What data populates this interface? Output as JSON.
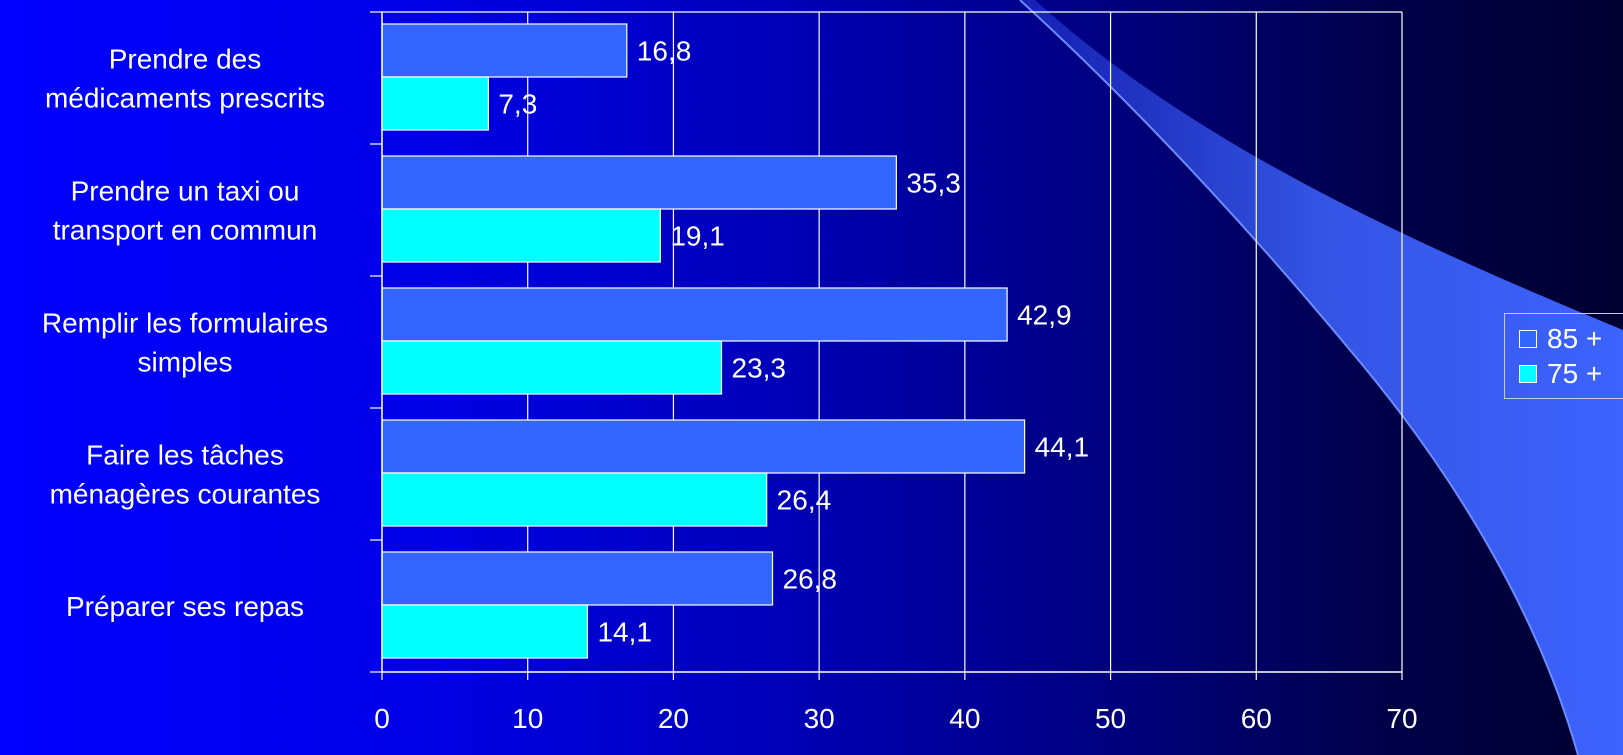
{
  "chart_data": {
    "type": "bar",
    "orientation": "horizontal",
    "categories": [
      [
        "Prendre des",
        "médicaments prescrits"
      ],
      [
        "Prendre un taxi ou",
        "transport en commun"
      ],
      [
        "Remplir les formulaires",
        "simples"
      ],
      [
        "Faire les tâches",
        "ménagères courantes"
      ],
      [
        "Préparer ses repas"
      ]
    ],
    "series": [
      {
        "name": "85 +",
        "color": "#3366ff",
        "values": [
          16.8,
          35.3,
          42.9,
          44.1,
          26.8
        ],
        "labels": [
          "16,8",
          "35,3",
          "42,9",
          "44,1",
          "26,8"
        ]
      },
      {
        "name": "75 +",
        "color": "#00ffff",
        "values": [
          7.3,
          19.1,
          23.3,
          26.4,
          14.1
        ],
        "labels": [
          "7,3",
          "19,1",
          "23,3",
          "26,4",
          "14,1"
        ]
      }
    ],
    "xlim": [
      0,
      70
    ],
    "xticks": [
      "0",
      "10",
      "20",
      "30",
      "40",
      "50",
      "60",
      "70"
    ],
    "grid": "vertical",
    "legend_position": "right"
  }
}
